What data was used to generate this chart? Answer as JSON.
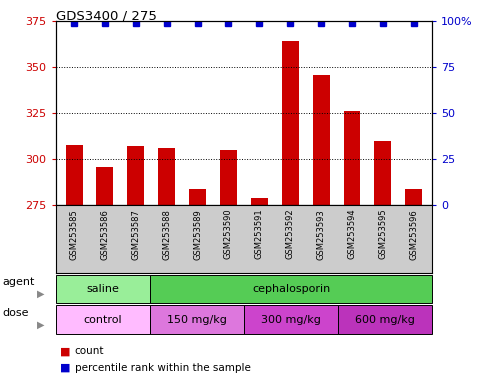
{
  "title": "GDS3400 / 275",
  "samples": [
    "GSM253585",
    "GSM253586",
    "GSM253587",
    "GSM253588",
    "GSM253589",
    "GSM253590",
    "GSM253591",
    "GSM253592",
    "GSM253593",
    "GSM253594",
    "GSM253595",
    "GSM253596"
  ],
  "bar_values": [
    308,
    296,
    307,
    306,
    284,
    305,
    279,
    364,
    346,
    326,
    310,
    284
  ],
  "percentile_values": [
    99,
    99,
    99,
    99,
    99,
    99,
    99,
    99,
    99,
    99,
    99,
    99
  ],
  "bar_color": "#cc0000",
  "dot_color": "#0000cc",
  "ylim_left": [
    275,
    375
  ],
  "ylim_right": [
    0,
    100
  ],
  "yticks_left": [
    275,
    300,
    325,
    350,
    375
  ],
  "yticks_right": [
    0,
    25,
    50,
    75,
    100
  ],
  "ytick_labels_right": [
    "0",
    "25",
    "50",
    "75",
    "100%"
  ],
  "grid_ticks": [
    300,
    325,
    350
  ],
  "agent_groups": [
    {
      "label": "saline",
      "start": 0,
      "end": 3,
      "color": "#99ee99"
    },
    {
      "label": "cephalosporin",
      "start": 3,
      "end": 12,
      "color": "#55cc55"
    }
  ],
  "dose_groups": [
    {
      "label": "control",
      "start": 0,
      "end": 3,
      "color": "#ffbbff"
    },
    {
      "label": "150 mg/kg",
      "start": 3,
      "end": 6,
      "color": "#dd66dd"
    },
    {
      "label": "300 mg/kg",
      "start": 6,
      "end": 9,
      "color": "#cc44cc"
    },
    {
      "label": "600 mg/kg",
      "start": 9,
      "end": 12,
      "color": "#bb33bb"
    }
  ],
  "bg_color": "#ffffff",
  "tick_color_left": "#cc0000",
  "tick_color_right": "#0000cc",
  "xticklabel_bg": "#cccccc",
  "label_row1": "agent",
  "label_row2": "dose"
}
